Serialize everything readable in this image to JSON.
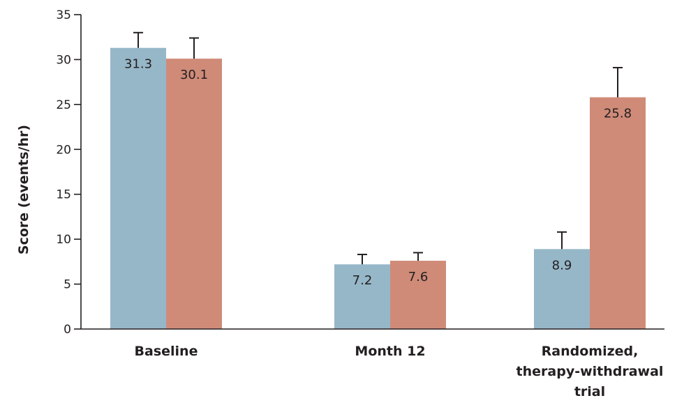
{
  "chart_data": {
    "type": "bar",
    "title": "",
    "xlabel": "",
    "ylabel": "Score (events/hr)",
    "ylim": [
      0,
      35
    ],
    "yticks": [
      0,
      5,
      10,
      15,
      20,
      25,
      30,
      35
    ],
    "grid": false,
    "categories": [
      [
        "Baseline"
      ],
      [
        "Month 12"
      ],
      [
        "Randomized,",
        "therapy-withdrawal",
        "trial"
      ]
    ],
    "series": [
      {
        "color": "#96b7c8",
        "values": [
          31.3,
          7.2,
          8.9
        ],
        "error_upper": [
          33.0,
          8.3,
          10.8
        ],
        "labels": [
          "31.3",
          "7.2",
          "8.9"
        ]
      },
      {
        "color": "#cf8b78",
        "values": [
          30.1,
          7.6,
          25.8
        ],
        "error_upper": [
          32.4,
          8.5,
          29.1
        ],
        "labels": [
          "30.1",
          "7.6",
          "25.8"
        ]
      }
    ]
  }
}
